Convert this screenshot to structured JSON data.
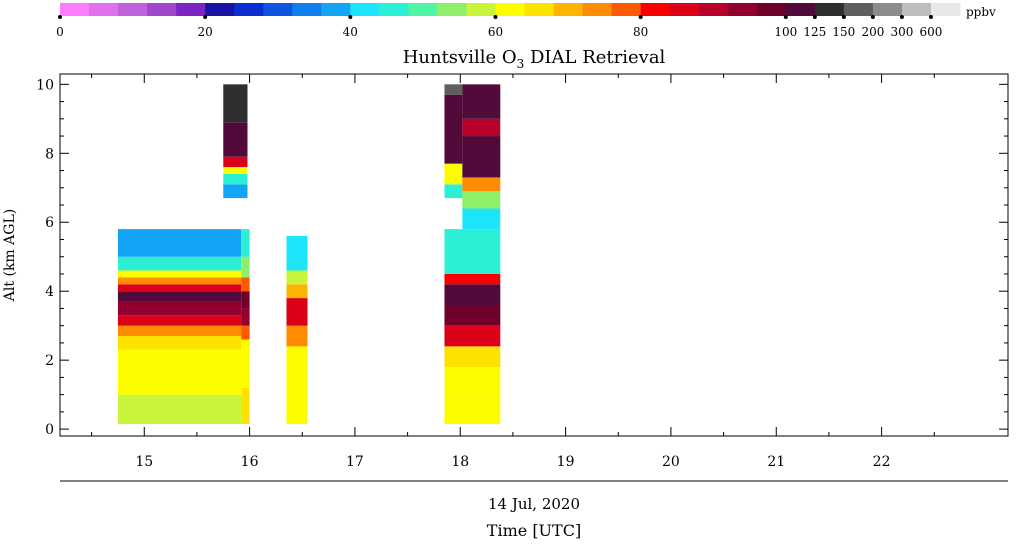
{
  "title": "Huntsville O",
  "title_sub": "3",
  "title_rest": " DIAL Retrieval",
  "colorbar": {
    "unit": "ppbv",
    "tick_labels": [
      "0",
      "20",
      "40",
      "60",
      "80",
      "100",
      "125",
      "150",
      "200",
      "300",
      "600"
    ],
    "colors": [
      "#ff7cff",
      "#e070ee",
      "#c060dd",
      "#a048cc",
      "#7e24c4",
      "#1a14a6",
      "#0a2ecf",
      "#0f54e0",
      "#0d7ff0",
      "#13a4f5",
      "#1ee4fb",
      "#2bf0d6",
      "#4ff4a4",
      "#8ef06a",
      "#c8f43a",
      "#fdfd00",
      "#fde200",
      "#fdb400",
      "#fd8c00",
      "#fd5a00",
      "#f70000",
      "#dc0018",
      "#b8002a",
      "#930030",
      "#6f002a",
      "#520a3a",
      "#2e2e2e",
      "#5e5e5e",
      "#8c8c8c",
      "#bdbdbd",
      "#e8e8e8"
    ]
  },
  "chart_data": {
    "type": "heatmap",
    "title": "Huntsville O3 DIAL Retrieval",
    "ylabel": "Alt (km AGL)",
    "xlabel": "Time [UTC]",
    "date_label": "14 Jul, 2020",
    "x_range_hours": [
      14.2,
      23.2
    ],
    "ylim": [
      -0.2,
      10.3
    ],
    "x_ticks": [
      15,
      16,
      17,
      18,
      19,
      20,
      21,
      22
    ],
    "y_ticks": [
      0,
      2,
      4,
      6,
      8,
      10
    ],
    "colorbar_units": "ppbv",
    "profiles": [
      {
        "t0": 14.75,
        "t1": 15.92,
        "alt_min": 0.15,
        "alt_max": 5.8,
        "layers": [
          {
            "z0": 0.15,
            "z1": 1.0,
            "ppbv": 58
          },
          {
            "z0": 1.0,
            "z1": 1.6,
            "ppbv": 60
          },
          {
            "z0": 1.6,
            "z1": 2.3,
            "ppbv": 61
          },
          {
            "z0": 2.3,
            "z1": 2.7,
            "ppbv": 64
          },
          {
            "z0": 2.7,
            "z1": 3.0,
            "ppbv": 74
          },
          {
            "z0": 3.0,
            "z1": 3.3,
            "ppbv": 84
          },
          {
            "z0": 3.3,
            "z1": 3.7,
            "ppbv": 93
          },
          {
            "z0": 3.7,
            "z1": 4.0,
            "ppbv": 104
          },
          {
            "z0": 4.0,
            "z1": 4.2,
            "ppbv": 86
          },
          {
            "z0": 4.2,
            "z1": 4.4,
            "ppbv": 72
          },
          {
            "z0": 4.4,
            "z1": 4.6,
            "ppbv": 63
          },
          {
            "z0": 4.6,
            "z1": 5.0,
            "ppbv": 45
          },
          {
            "z0": 5.0,
            "z1": 5.8,
            "ppbv": 38
          }
        ]
      },
      {
        "t0": 15.92,
        "t1": 16.0,
        "alt_min": 0.15,
        "alt_max": 5.8,
        "layers": [
          {
            "z0": 0.15,
            "z1": 1.2,
            "ppbv": 64
          },
          {
            "z0": 1.2,
            "z1": 2.6,
            "ppbv": 61
          },
          {
            "z0": 2.6,
            "z1": 3.0,
            "ppbv": 78
          },
          {
            "z0": 3.0,
            "z1": 3.5,
            "ppbv": 92
          },
          {
            "z0": 3.5,
            "z1": 4.0,
            "ppbv": 97
          },
          {
            "z0": 4.0,
            "z1": 4.4,
            "ppbv": 76
          },
          {
            "z0": 4.4,
            "z1": 5.0,
            "ppbv": 52
          },
          {
            "z0": 5.0,
            "z1": 5.8,
            "ppbv": 44
          }
        ]
      },
      {
        "t0": 15.75,
        "t1": 15.98,
        "alt_min": 6.7,
        "alt_max": 10.0,
        "layers": [
          {
            "z0": 6.7,
            "z1": 7.1,
            "ppbv": 36
          },
          {
            "z0": 7.1,
            "z1": 7.4,
            "ppbv": 47
          },
          {
            "z0": 7.4,
            "z1": 7.6,
            "ppbv": 62
          },
          {
            "z0": 7.6,
            "z1": 7.9,
            "ppbv": 84
          },
          {
            "z0": 7.9,
            "z1": 8.9,
            "ppbv": 108
          },
          {
            "z0": 8.9,
            "z1": 10.0,
            "ppbv": 130
          }
        ]
      },
      {
        "t0": 16.35,
        "t1": 16.55,
        "alt_min": 0.15,
        "alt_max": 5.6,
        "layers": [
          {
            "z0": 0.15,
            "z1": 0.8,
            "ppbv": 63
          },
          {
            "z0": 0.8,
            "z1": 2.4,
            "ppbv": 60
          },
          {
            "z0": 2.4,
            "z1": 3.0,
            "ppbv": 72
          },
          {
            "z0": 3.0,
            "z1": 3.8,
            "ppbv": 84
          },
          {
            "z0": 3.8,
            "z1": 4.2,
            "ppbv": 70
          },
          {
            "z0": 4.2,
            "z1": 4.6,
            "ppbv": 57
          },
          {
            "z0": 4.6,
            "z1": 5.6,
            "ppbv": 42
          }
        ]
      },
      {
        "t0": 17.85,
        "t1": 18.38,
        "alt_min": 0.15,
        "alt_max": 5.8,
        "layers": [
          {
            "z0": 0.15,
            "z1": 0.9,
            "ppbv": 61
          },
          {
            "z0": 0.9,
            "z1": 1.8,
            "ppbv": 60
          },
          {
            "z0": 1.8,
            "z1": 2.4,
            "ppbv": 66
          },
          {
            "z0": 2.4,
            "z1": 3.0,
            "ppbv": 86
          },
          {
            "z0": 3.0,
            "z1": 3.6,
            "ppbv": 96
          },
          {
            "z0": 3.6,
            "z1": 4.2,
            "ppbv": 104
          },
          {
            "z0": 4.2,
            "z1": 4.5,
            "ppbv": 80
          },
          {
            "z0": 4.5,
            "z1": 5.8,
            "ppbv": 44
          }
        ]
      },
      {
        "t0": 17.85,
        "t1": 18.02,
        "alt_min": 6.7,
        "alt_max": 10.0,
        "layers": [
          {
            "z0": 6.7,
            "z1": 7.1,
            "ppbv": 46
          },
          {
            "z0": 7.1,
            "z1": 7.7,
            "ppbv": 60
          },
          {
            "z0": 7.7,
            "z1": 9.7,
            "ppbv": 110
          },
          {
            "z0": 9.7,
            "z1": 10.0,
            "ppbv": 150
          }
        ]
      },
      {
        "t0": 18.02,
        "t1": 18.38,
        "alt_min": 5.8,
        "alt_max": 10.0,
        "layers": [
          {
            "z0": 5.8,
            "z1": 6.4,
            "ppbv": 42
          },
          {
            "z0": 6.4,
            "z1": 6.9,
            "ppbv": 54
          },
          {
            "z0": 6.9,
            "z1": 7.3,
            "ppbv": 72
          },
          {
            "z0": 7.3,
            "z1": 8.5,
            "ppbv": 104
          },
          {
            "z0": 8.5,
            "z1": 9.0,
            "ppbv": 90
          },
          {
            "z0": 9.0,
            "z1": 10.0,
            "ppbv": 120
          }
        ]
      }
    ]
  }
}
